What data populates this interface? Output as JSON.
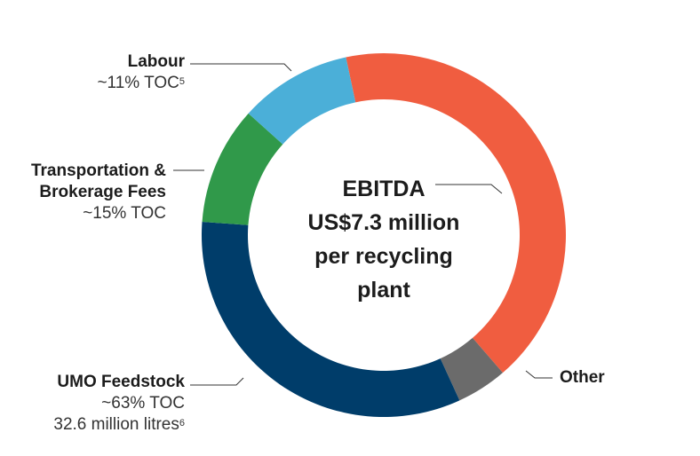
{
  "chart_data": {
    "type": "pie",
    "style": "donut",
    "center_label": [
      "EBITDA",
      "US$7.3 million",
      "per recycling",
      "plant"
    ],
    "slices": [
      {
        "name": "EBITDA",
        "value": 42,
        "color": "#F05D40"
      },
      {
        "name": "Other",
        "value": 4.5,
        "color": "#6B6B6B"
      },
      {
        "name": "UMO Feedstock",
        "value": 33,
        "color": "#003D6A"
      },
      {
        "name": "Transportation & Brokerage Fees",
        "value": 10.5,
        "color": "#30994A"
      },
      {
        "name": "Labour",
        "value": 10,
        "color": "#4BAFD8"
      }
    ]
  },
  "labels": {
    "labour": {
      "title": "Labour",
      "sub": "~11% TOC",
      "sup": "5"
    },
    "transport": {
      "title1": "Transportation &",
      "title2": "Brokerage Fees",
      "sub": "~15% TOC"
    },
    "umo": {
      "title": "UMO Feedstock",
      "sub1": "~63% TOC",
      "sub2": "32.6 million litres",
      "sup": "6"
    },
    "other": {
      "title": "Other"
    }
  }
}
